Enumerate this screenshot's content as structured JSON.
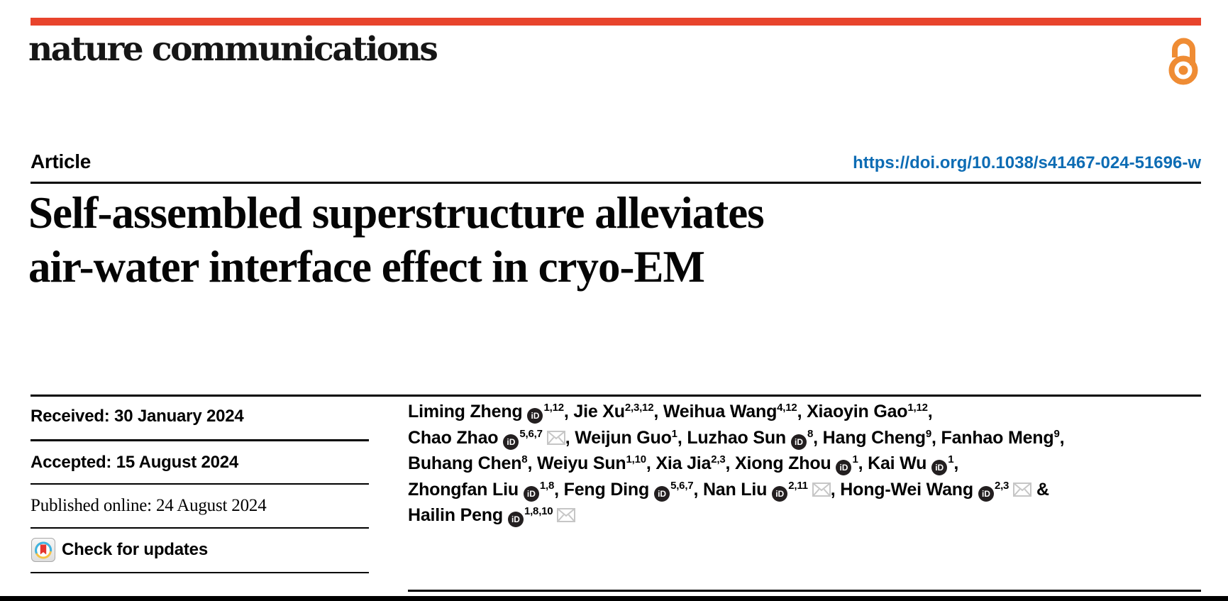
{
  "masthead": {
    "journal_name": "nature communications",
    "accent_red": "#e8442c",
    "open_access_orange": "#ef8c34"
  },
  "article_header": {
    "kicker": "Article",
    "doi": "https://doi.org/10.1038/s41467-024-51696-w",
    "doi_color": "#0d6cb4",
    "title_line1": "Self-assembled superstructure alleviates",
    "title_line2": "air-water interface effect in cryo-EM"
  },
  "timeline": {
    "received": "Received: 30 January 2024",
    "accepted": "Accepted: 15 August 2024",
    "published": "Published online: 24 August 2024",
    "check_updates_label": "Check for updates"
  },
  "authors": {
    "lines": [
      [
        {
          "name": "Liming Zheng",
          "orcid": true,
          "sup": "1,12",
          "mail": false,
          "sep": ", "
        },
        {
          "name": "Jie Xu",
          "orcid": false,
          "sup": "2,3,12",
          "mail": false,
          "sep": ", "
        },
        {
          "name": "Weihua Wang",
          "orcid": false,
          "sup": "4,12",
          "mail": false,
          "sep": ", "
        },
        {
          "name": "Xiaoyin Gao",
          "orcid": false,
          "sup": "1,12",
          "mail": false,
          "sep": ","
        }
      ],
      [
        {
          "name": "Chao Zhao",
          "orcid": true,
          "sup": "5,6,7",
          "mail": true,
          "sep": ", "
        },
        {
          "name": "Weijun Guo",
          "orcid": false,
          "sup": "1",
          "mail": false,
          "sep": ", "
        },
        {
          "name": "Luzhao Sun",
          "orcid": true,
          "sup": "8",
          "mail": false,
          "sep": ", "
        },
        {
          "name": "Hang Cheng",
          "orcid": false,
          "sup": "9",
          "mail": false,
          "sep": ", "
        },
        {
          "name": "Fanhao Meng",
          "orcid": false,
          "sup": "9",
          "mail": false,
          "sep": ","
        }
      ],
      [
        {
          "name": "Buhang Chen",
          "orcid": false,
          "sup": "8",
          "mail": false,
          "sep": ", "
        },
        {
          "name": "Weiyu Sun",
          "orcid": false,
          "sup": "1,10",
          "mail": false,
          "sep": ", "
        },
        {
          "name": "Xia Jia",
          "orcid": false,
          "sup": "2,3",
          "mail": false,
          "sep": ", "
        },
        {
          "name": "Xiong Zhou",
          "orcid": true,
          "sup": "1",
          "mail": false,
          "sep": ", "
        },
        {
          "name": "Kai Wu",
          "orcid": true,
          "sup": "1",
          "mail": false,
          "sep": ","
        }
      ],
      [
        {
          "name": "Zhongfan Liu",
          "orcid": true,
          "sup": "1,8",
          "mail": false,
          "sep": ", "
        },
        {
          "name": "Feng Ding",
          "orcid": true,
          "sup": "5,6,7",
          "mail": false,
          "sep": ", "
        },
        {
          "name": "Nan Liu",
          "orcid": true,
          "sup": "2,11",
          "mail": true,
          "sep": ", "
        },
        {
          "name": "Hong-Wei Wang",
          "orcid": true,
          "sup": "2,3",
          "mail": true,
          "sep": " &"
        }
      ],
      [
        {
          "name": "Hailin Peng",
          "orcid": true,
          "sup": "1,8,10",
          "mail": true,
          "sep": ""
        }
      ]
    ]
  }
}
